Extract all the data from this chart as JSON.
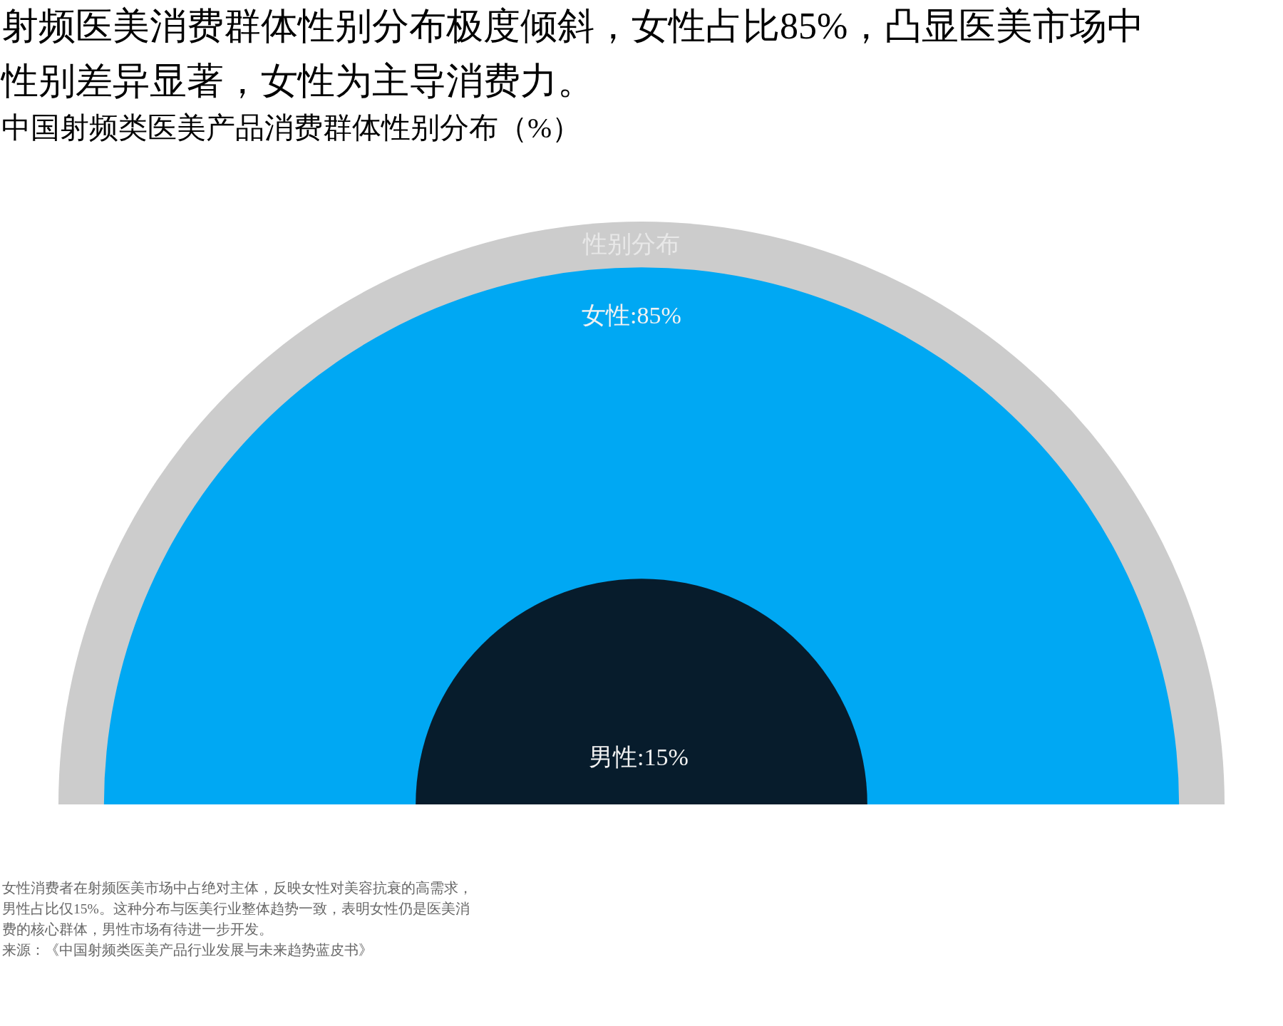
{
  "chart_data": {
    "type": "other",
    "title": "射频医美消费群体性别分布极度倾斜，女性占比85%，凸显医美市场中性别差异显著，女性为主导消费力。",
    "subtitle": "中国射频类医美产品消费群体性别分布（%）",
    "values": [
      85,
      15
    ],
    "colors": [
      "#00a8f3",
      "#071c2c"
    ],
    "value_labels": [
      "女性:85%",
      "男性:15%"
    ],
    "bands": [
      {
        "axis": "y",
        "label": "性别分布",
        "color": "#cccccc"
      }
    ],
    "annotations": [
      "女性消费者在射频医美市场中占绝对主体，反映女性对美容抗衰的高需求，男性占比仅15%。这种分布与医美行业整体趋势一致，表明女性仍是医美消费的核心群体，男性市场有待进一步开发。",
      "来源：《中国射频类医美产品行业发展与未来趋势蓝皮书》"
    ]
  }
}
